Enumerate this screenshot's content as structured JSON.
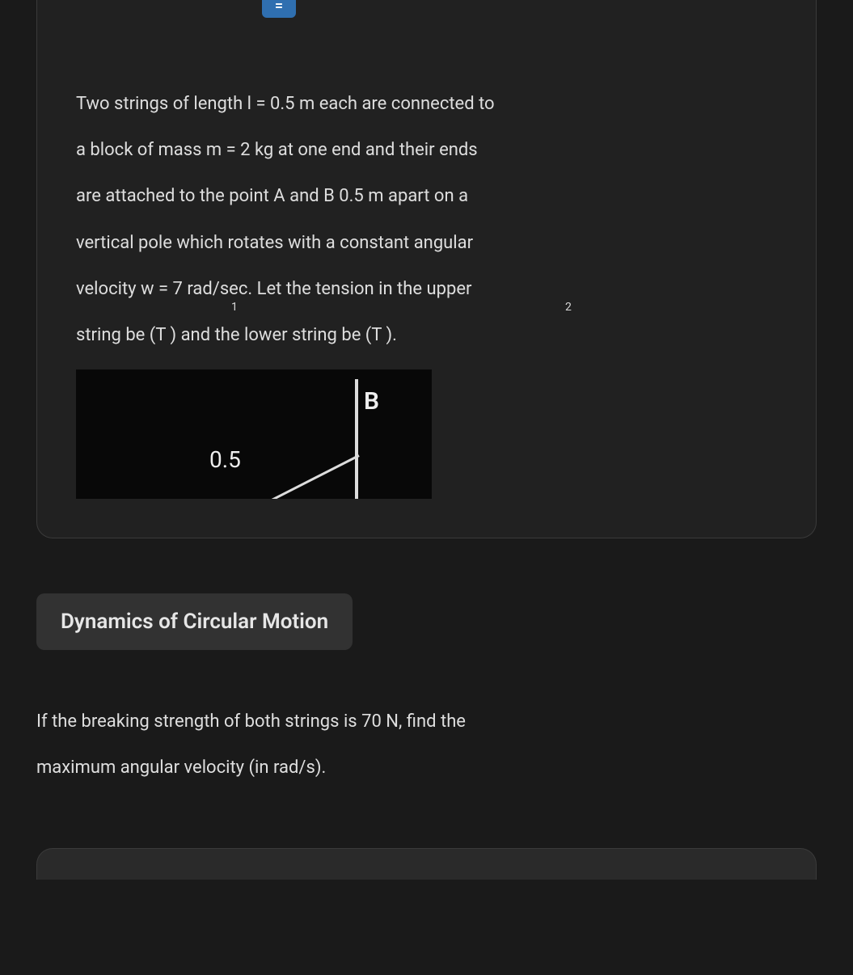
{
  "badge": {
    "label": "="
  },
  "problem": {
    "line1": "Two strings of length l = 0.5 m each are connected to",
    "line2": "a block of mass m = 2 kg at one end and their ends",
    "line3": "are attached to the point A and B 0.5 m apart on a",
    "line4": "vertical pole which rotates with a constant angular",
    "line5a": "velocity w = 7 rad/sec. Let the tension in the upper",
    "line6": "string be (T ) and the lower string be (T ).",
    "sub1": "1",
    "sub2": "2"
  },
  "diagram": {
    "point_label": "B",
    "length_label": "0.5",
    "background_color": "#080808",
    "line_color": "#dddddd"
  },
  "topic_tag": "Dynamics of Circular Motion",
  "followup": {
    "line1": "If the breaking strength of both strings is 70 N, find the",
    "line2": "maximum angular velocity (in rad/s)."
  }
}
